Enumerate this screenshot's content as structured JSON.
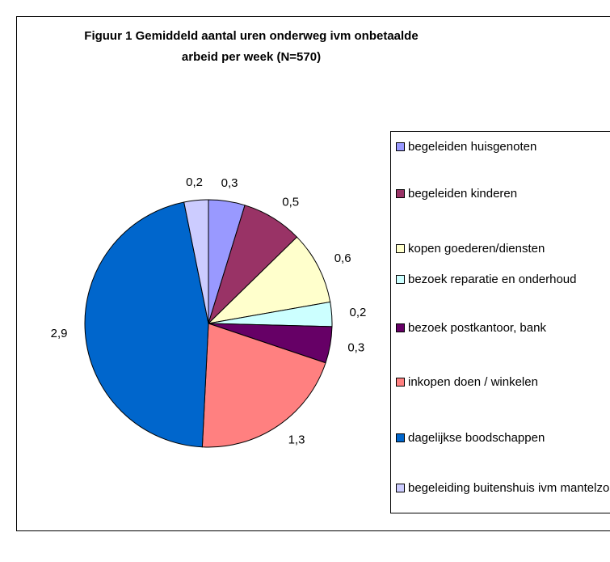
{
  "chart_data": {
    "type": "pie",
    "title": "Figuur 1 Gemiddeld aantal uren onderweg ivm onbetaalde arbeid per week (N=570)",
    "title_lines": [
      "Figuur 1 Gemiddeld aantal uren onderweg ivm onbetaalde",
      "arbeid per week (N=570)"
    ],
    "categories": [
      "begeleiden huisgenoten",
      "begeleiden kinderen",
      "kopen goederen/diensten",
      "bezoek reparatie en onderhoud",
      "bezoek postkantoor, bank",
      "inkopen doen / winkelen",
      "dagelijkse boodschappen",
      "begeleiding buitenshuis ivm mantelzorg"
    ],
    "values": [
      0.3,
      0.5,
      0.6,
      0.2,
      0.3,
      1.3,
      2.9,
      0.2
    ],
    "value_labels": [
      "0,3",
      "0,5",
      "0,6",
      "0,2",
      "0,3",
      "1,3",
      "2,9",
      "0,2"
    ],
    "colors": [
      "#9999ff",
      "#993366",
      "#ffffcc",
      "#ccffff",
      "#660066",
      "#ff8080",
      "#0066cc",
      "#ccccff"
    ],
    "legend": "right"
  }
}
